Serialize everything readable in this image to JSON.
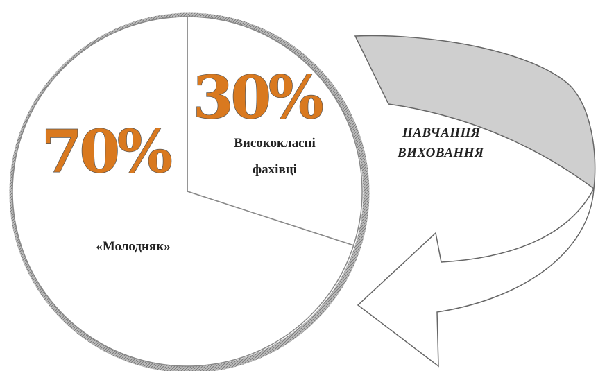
{
  "chart_data": {
    "type": "pie",
    "title": "",
    "slices": [
      {
        "value": 70,
        "percent_label": "70%",
        "label": "«Молодняк»"
      },
      {
        "value": 30,
        "percent_label": "30%",
        "label_lines": [
          "Висококласні",
          "фахівці"
        ]
      }
    ],
    "arrow_labels": [
      "НАВЧАННЯ",
      "ВИХОВАННЯ"
    ],
    "colors": {
      "percent_fill": "#d9791f",
      "percent_stroke": "#555555",
      "pie_fill": "#ffffff",
      "pie_border": "#888888",
      "arrow_band": "#cfcfcf",
      "arrow_outline": "#666666"
    }
  }
}
